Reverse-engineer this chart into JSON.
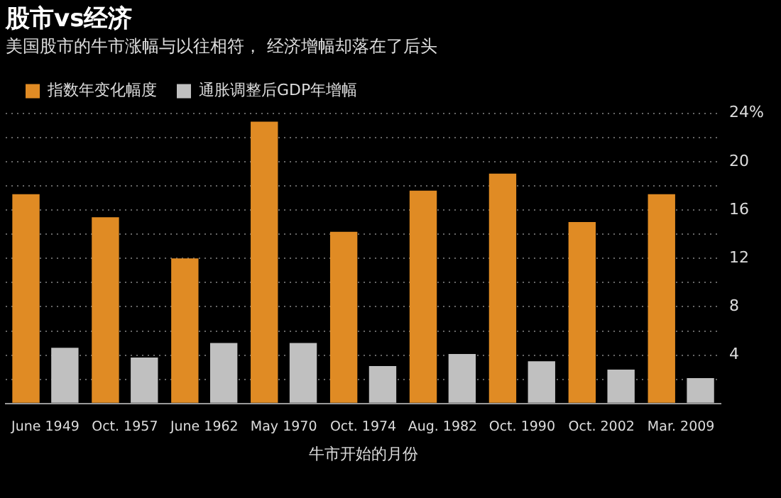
{
  "chart_data": {
    "type": "bar",
    "title": "股市vs经济",
    "subtitle": "美国股市的牛市涨幅与以往相符， 经济增幅却落在了后头",
    "xlabel": "牛市开始的月份",
    "categories": [
      "June 1949",
      "Oct. 1957",
      "June 1962",
      "May 1970",
      "Oct. 1974",
      "Aug. 1982",
      "Oct. 1990",
      "Oct. 2002",
      "Mar. 2009"
    ],
    "series": [
      {
        "name": "指数年变化幅度",
        "color": "#e08b24",
        "values": [
          17.3,
          15.4,
          12.0,
          23.3,
          14.2,
          17.6,
          19.0,
          15.0,
          17.3
        ]
      },
      {
        "name": "通胀调整后GDP年增幅",
        "color": "#c0c0c0",
        "values": [
          4.6,
          3.8,
          5.0,
          5.0,
          3.1,
          4.1,
          3.5,
          2.8,
          2.1
        ]
      }
    ],
    "ylim": [
      0,
      24
    ],
    "yticks": [
      {
        "value": 0,
        "label": null
      },
      {
        "value": 2,
        "label": null
      },
      4,
      {
        "value": 6,
        "label": null
      },
      8,
      {
        "value": 10,
        "label": null
      },
      12,
      {
        "value": 14,
        "label": null
      },
      16,
      {
        "value": 18,
        "label": null
      },
      20,
      {
        "value": 22,
        "label": null
      },
      {
        "value": 24,
        "label": "24%"
      }
    ],
    "grid": "y",
    "legend": "top left"
  }
}
